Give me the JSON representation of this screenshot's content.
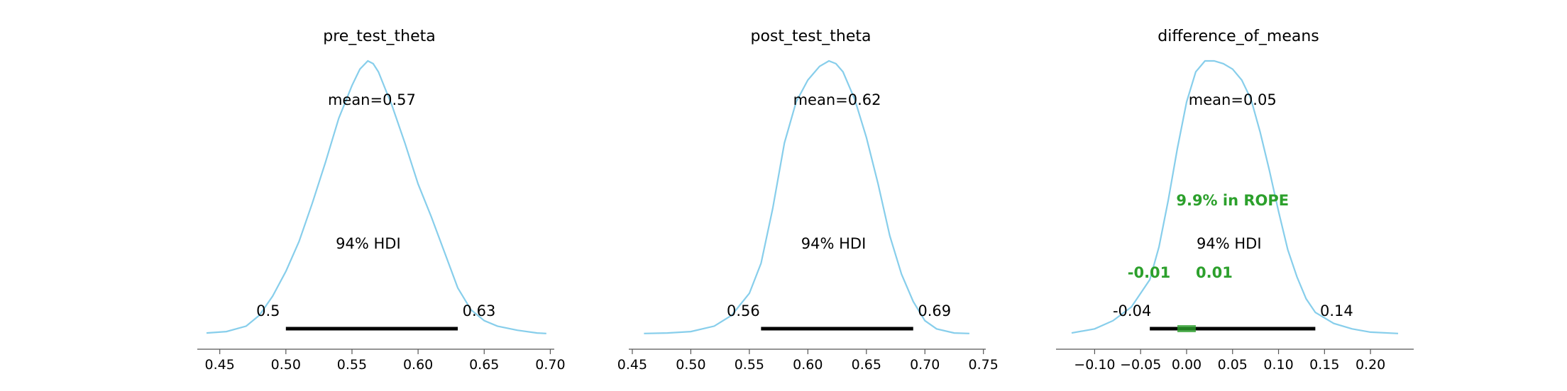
{
  "chart_data": [
    {
      "type": "area",
      "title": "pre_test_theta",
      "mean_label": "mean=0.57",
      "hdi_label": "94% HDI",
      "hdi": [
        0.5,
        0.63
      ],
      "hdi_low_label": "0.5",
      "hdi_high_label": "0.63",
      "xlim": [
        0.433,
        0.703
      ],
      "xticks": [
        0.45,
        0.5,
        0.55,
        0.6,
        0.65,
        0.7
      ],
      "xtick_labels": [
        "0.45",
        "0.50",
        "0.55",
        "0.60",
        "0.65",
        "0.70"
      ],
      "x": [
        0.44,
        0.455,
        0.47,
        0.48,
        0.49,
        0.5,
        0.51,
        0.52,
        0.53,
        0.54,
        0.55,
        0.556,
        0.562,
        0.566,
        0.57,
        0.575,
        0.58,
        0.59,
        0.6,
        0.61,
        0.62,
        0.63,
        0.64,
        0.65,
        0.66,
        0.675,
        0.69,
        0.697
      ],
      "density": [
        0.005,
        0.01,
        0.03,
        0.07,
        0.14,
        0.23,
        0.34,
        0.48,
        0.63,
        0.79,
        0.91,
        0.97,
        1.0,
        0.99,
        0.96,
        0.9,
        0.84,
        0.7,
        0.55,
        0.43,
        0.3,
        0.17,
        0.09,
        0.05,
        0.03,
        0.015,
        0.005,
        0.003
      ],
      "rope": null
    },
    {
      "type": "area",
      "title": "post_test_theta",
      "mean_label": "mean=0.62",
      "hdi_label": "94% HDI",
      "hdi": [
        0.56,
        0.69
      ],
      "hdi_low_label": "0.56",
      "hdi_high_label": "0.69",
      "xlim": [
        0.447,
        0.752
      ],
      "xticks": [
        0.45,
        0.5,
        0.55,
        0.6,
        0.65,
        0.7,
        0.75
      ],
      "xtick_labels": [
        "0.45",
        "0.50",
        "0.55",
        "0.60",
        "0.65",
        "0.70",
        "0.75"
      ],
      "x": [
        0.46,
        0.48,
        0.5,
        0.52,
        0.535,
        0.55,
        0.56,
        0.57,
        0.58,
        0.59,
        0.6,
        0.61,
        0.618,
        0.624,
        0.63,
        0.64,
        0.65,
        0.66,
        0.67,
        0.68,
        0.69,
        0.7,
        0.71,
        0.725,
        0.738
      ],
      "density": [
        0.003,
        0.005,
        0.01,
        0.03,
        0.07,
        0.15,
        0.26,
        0.46,
        0.7,
        0.85,
        0.93,
        0.98,
        1.0,
        0.99,
        0.96,
        0.86,
        0.72,
        0.55,
        0.36,
        0.22,
        0.12,
        0.05,
        0.02,
        0.005,
        0.003
      ],
      "rope": null
    },
    {
      "type": "area",
      "title": "difference_of_means",
      "mean_label": "mean=0.05",
      "hdi_label": "94% HDI",
      "hdi": [
        -0.04,
        0.14
      ],
      "hdi_low_label": "-0.04",
      "hdi_high_label": "0.14",
      "rope": [
        -0.01,
        0.01
      ],
      "rope_label": "9.9% in ROPE",
      "rope_low_label": "-0.01",
      "rope_high_label": "0.01",
      "xlim": [
        -0.142,
        0.247
      ],
      "xticks": [
        -0.1,
        -0.05,
        0.0,
        0.05,
        0.1,
        0.15,
        0.2
      ],
      "xtick_labels": [
        "−0.10",
        "−0.05",
        "0.00",
        "0.05",
        "0.10",
        "0.15",
        "0.20"
      ],
      "x": [
        -0.125,
        -0.1,
        -0.08,
        -0.06,
        -0.04,
        -0.03,
        -0.02,
        -0.01,
        0.0,
        0.01,
        0.02,
        0.03,
        0.04,
        0.05,
        0.06,
        0.07,
        0.08,
        0.09,
        0.1,
        0.11,
        0.12,
        0.13,
        0.14,
        0.16,
        0.18,
        0.2,
        0.23
      ],
      "density": [
        0.005,
        0.02,
        0.05,
        0.1,
        0.2,
        0.32,
        0.49,
        0.68,
        0.85,
        0.96,
        1.0,
        1.0,
        0.99,
        0.97,
        0.93,
        0.86,
        0.74,
        0.6,
        0.45,
        0.31,
        0.21,
        0.13,
        0.08,
        0.04,
        0.02,
        0.008,
        0.003
      ]
    }
  ]
}
